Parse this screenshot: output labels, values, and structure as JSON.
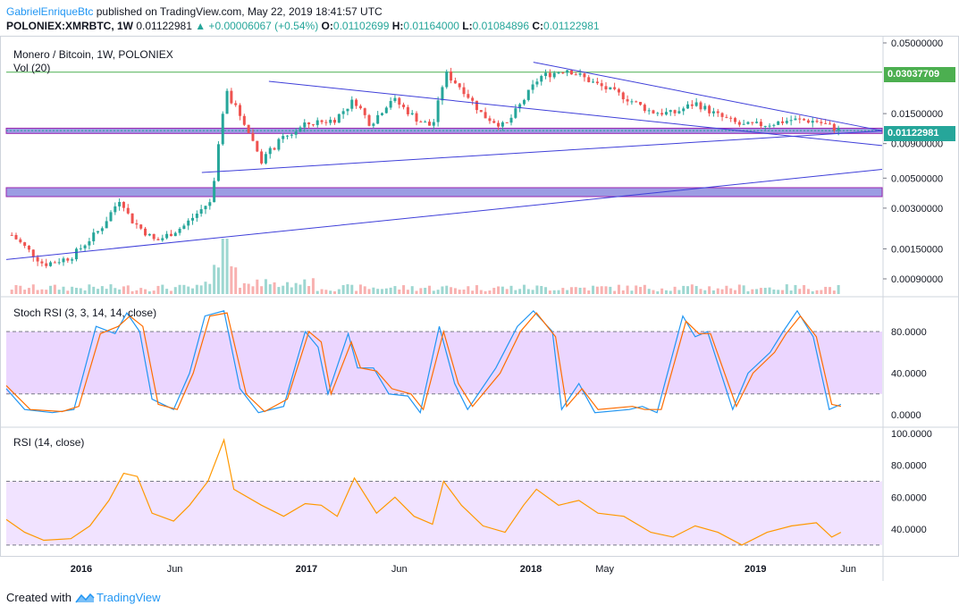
{
  "header": {
    "author": "GabrielEnriqueBtc",
    "published": "published on TradingView.com, May 22, 2019 18:41:57 UTC",
    "symbol": "POLONIEX:XMRBTC, 1W",
    "last": "0.01122981",
    "change": "▲ +0.00006067 (+0.54%)",
    "o_label": "O:",
    "o_value": "0.01102699",
    "h_label": "H:",
    "h_value": "0.01164000",
    "l_label": "L:",
    "l_value": "0.01084896",
    "c_label": "C:",
    "c_value": "0.01122981"
  },
  "panes": {
    "price_title": "Monero / Bitcoin, 1W, POLONIEX",
    "volume_title": "Vol (20)",
    "stoch_title": "Stoch RSI (3, 3, 14, 14, close)",
    "rsi_title": "RSI (14, close)"
  },
  "badges": {
    "resistance": "0.03037709",
    "last_price": "0.01122981"
  },
  "footer": {
    "created_with": "Created with",
    "brand": "TradingView"
  },
  "colors": {
    "up": "#26a69a",
    "down": "#ef5350",
    "trendline": "#3f3fd9",
    "zone": "#7b7bd9",
    "stoch_k": "#2196f3",
    "stoch_d": "#ff6d00",
    "rsi": "#ff9800",
    "band": "#e6ccff"
  },
  "chart_data": [
    {
      "type": "candlestick",
      "title": "Monero / Bitcoin, 1W, POLONIEX",
      "scale": "log",
      "y_ticks": [
        "0.05000000",
        "0.01500000",
        "0.00900000",
        "0.00500000",
        "0.00300000",
        "0.00150000",
        "0.00090000"
      ],
      "y_tick_values": [
        0.05,
        0.015,
        0.009,
        0.005,
        0.003,
        0.0015,
        0.0009
      ],
      "x_ticks": [
        "2016",
        "Jun",
        "2017",
        "Jun",
        "2018",
        "May",
        "2019",
        "Jun"
      ],
      "x_tick_dates": [
        "2016-01-01",
        "2016-06-01",
        "2017-01-01",
        "2017-06-01",
        "2018-01-01",
        "2018-05-01",
        "2019-01-01",
        "2019-06-01"
      ],
      "x_range": [
        "2015-09-01",
        "2019-07-26"
      ],
      "ylim": [
        0.00065,
        0.06
      ],
      "grid": false,
      "key_prices": [
        {
          "date": "2015-09-10",
          "close": 0.0019
        },
        {
          "date": "2015-11-01",
          "close": 0.00115
        },
        {
          "date": "2015-12-15",
          "close": 0.0013
        },
        {
          "date": "2016-02-01",
          "close": 0.0021
        },
        {
          "date": "2016-03-05",
          "close": 0.0036
        },
        {
          "date": "2016-03-20",
          "close": 0.0025
        },
        {
          "date": "2016-05-01",
          "close": 0.0017
        },
        {
          "date": "2016-06-15",
          "close": 0.0022
        },
        {
          "date": "2016-08-01",
          "close": 0.0035
        },
        {
          "date": "2016-08-22",
          "close": 0.022
        },
        {
          "date": "2016-09-20",
          "close": 0.0135
        },
        {
          "date": "2016-10-20",
          "close": 0.0068
        },
        {
          "date": "2016-11-20",
          "close": 0.0095
        },
        {
          "date": "2017-01-01",
          "close": 0.0125
        },
        {
          "date": "2017-02-15",
          "close": 0.0135
        },
        {
          "date": "2017-03-20",
          "close": 0.019
        },
        {
          "date": "2017-04-15",
          "close": 0.0125
        },
        {
          "date": "2017-05-20",
          "close": 0.0195
        },
        {
          "date": "2017-07-01",
          "close": 0.0135
        },
        {
          "date": "2017-07-25",
          "close": 0.012
        },
        {
          "date": "2017-08-15",
          "close": 0.03
        },
        {
          "date": "2017-09-15",
          "close": 0.022
        },
        {
          "date": "2017-10-15",
          "close": 0.0145
        },
        {
          "date": "2017-11-20",
          "close": 0.012
        },
        {
          "date": "2017-12-15",
          "close": 0.0175
        },
        {
          "date": "2018-01-15",
          "close": 0.028
        },
        {
          "date": "2018-03-01",
          "close": 0.032
        },
        {
          "date": "2018-04-15",
          "close": 0.025
        },
        {
          "date": "2018-06-01",
          "close": 0.02
        },
        {
          "date": "2018-07-15",
          "close": 0.0155
        },
        {
          "date": "2018-08-20",
          "close": 0.015
        },
        {
          "date": "2018-09-25",
          "close": 0.018
        },
        {
          "date": "2018-11-01",
          "close": 0.0145
        },
        {
          "date": "2018-12-10",
          "close": 0.0122
        },
        {
          "date": "2019-01-20",
          "close": 0.0125
        },
        {
          "date": "2019-03-01",
          "close": 0.0135
        },
        {
          "date": "2019-04-10",
          "close": 0.0132
        },
        {
          "date": "2019-05-20",
          "close": 0.01122981
        }
      ],
      "horizontal_levels": [
        0.03037709
      ],
      "zones": [
        [
          0.0107,
          0.0117
        ],
        [
          0.00365,
          0.00425
        ]
      ],
      "trendlines": [
        {
          "from": [
            "2015-09-01",
            0.00125
          ],
          "to": [
            "2019-07-26",
            0.0058
          ]
        },
        {
          "from": [
            "2016-07-15",
            0.0055
          ],
          "to": [
            "2019-07-26",
            0.0112
          ]
        },
        {
          "from": [
            "2016-11-01",
            0.026
          ],
          "to": [
            "2019-07-26",
            0.0087
          ]
        },
        {
          "from": [
            "2018-01-05",
            0.036
          ],
          "to": [
            "2019-07-26",
            0.0112
          ]
        }
      ]
    },
    {
      "type": "bar",
      "title": "Vol (20)",
      "description": "weekly volume bars colored by candle direction",
      "peak": {
        "date": "2016-08-22",
        "relative": 1.0
      }
    },
    {
      "type": "line",
      "title": "Stoch RSI (3, 3, 14, 14, close)",
      "y_ticks": [
        "80.0000",
        "40.0000",
        "0.0000"
      ],
      "y_tick_values": [
        80,
        40,
        0
      ],
      "ylim": [
        -5,
        105
      ],
      "band": [
        20,
        80
      ],
      "series": [
        {
          "name": "K",
          "points": [
            [
              "2015-09-01",
              25
            ],
            [
              "2015-10-01",
              5
            ],
            [
              "2015-11-15",
              2
            ],
            [
              "2015-12-20",
              5
            ],
            [
              "2016-01-25",
              85
            ],
            [
              "2016-02-25",
              78
            ],
            [
              "2016-03-15",
              98
            ],
            [
              "2016-04-05",
              80
            ],
            [
              "2016-04-25",
              15
            ],
            [
              "2016-05-30",
              5
            ],
            [
              "2016-06-25",
              40
            ],
            [
              "2016-07-20",
              95
            ],
            [
              "2016-08-20",
              100
            ],
            [
              "2016-09-15",
              25
            ],
            [
              "2016-10-15",
              2
            ],
            [
              "2016-11-25",
              8
            ],
            [
              "2016-12-30",
              80
            ],
            [
              "2017-01-20",
              65
            ],
            [
              "2017-02-05",
              20
            ],
            [
              "2017-03-10",
              78
            ],
            [
              "2017-03-25",
              45
            ],
            [
              "2017-04-20",
              45
            ],
            [
              "2017-05-15",
              20
            ],
            [
              "2017-06-15",
              18
            ],
            [
              "2017-07-05",
              2
            ],
            [
              "2017-08-05",
              85
            ],
            [
              "2017-08-30",
              30
            ],
            [
              "2017-09-20",
              5
            ],
            [
              "2017-11-05",
              45
            ],
            [
              "2017-12-10",
              85
            ],
            [
              "2018-01-05",
              100
            ],
            [
              "2018-02-05",
              80
            ],
            [
              "2018-02-20",
              5
            ],
            [
              "2018-03-20",
              30
            ],
            [
              "2018-04-15",
              2
            ],
            [
              "2018-06-10",
              5
            ],
            [
              "2018-07-01",
              8
            ],
            [
              "2018-07-25",
              2
            ],
            [
              "2018-09-05",
              95
            ],
            [
              "2018-09-25",
              75
            ],
            [
              "2018-10-15",
              80
            ],
            [
              "2018-11-25",
              5
            ],
            [
              "2018-12-20",
              40
            ],
            [
              "2019-01-25",
              60
            ],
            [
              "2019-02-15",
              80
            ],
            [
              "2019-03-10",
              100
            ],
            [
              "2019-04-05",
              75
            ],
            [
              "2019-05-01",
              5
            ],
            [
              "2019-05-20",
              10
            ]
          ]
        },
        {
          "name": "D",
          "points": [
            [
              "2015-09-01",
              28
            ],
            [
              "2015-10-10",
              5
            ],
            [
              "2015-12-01",
              3
            ],
            [
              "2015-12-28",
              8
            ],
            [
              "2016-02-01",
              78
            ],
            [
              "2016-03-01",
              85
            ],
            [
              "2016-03-20",
              95
            ],
            [
              "2016-04-10",
              85
            ],
            [
              "2016-05-05",
              10
            ],
            [
              "2016-06-05",
              5
            ],
            [
              "2016-07-01",
              40
            ],
            [
              "2016-07-28",
              95
            ],
            [
              "2016-08-25",
              98
            ],
            [
              "2016-09-25",
              20
            ],
            [
              "2016-10-25",
              3
            ],
            [
              "2016-12-01",
              15
            ],
            [
              "2017-01-05",
              80
            ],
            [
              "2017-01-25",
              70
            ],
            [
              "2017-02-10",
              20
            ],
            [
              "2017-03-15",
              70
            ],
            [
              "2017-03-30",
              45
            ],
            [
              "2017-04-25",
              42
            ],
            [
              "2017-05-20",
              25
            ],
            [
              "2017-06-20",
              20
            ],
            [
              "2017-07-10",
              5
            ],
            [
              "2017-08-12",
              80
            ],
            [
              "2017-09-05",
              30
            ],
            [
              "2017-09-28",
              8
            ],
            [
              "2017-11-12",
              40
            ],
            [
              "2017-12-15",
              80
            ],
            [
              "2018-01-10",
              98
            ],
            [
              "2018-02-10",
              75
            ],
            [
              "2018-02-28",
              8
            ],
            [
              "2018-03-25",
              25
            ],
            [
              "2018-04-20",
              5
            ],
            [
              "2018-06-15",
              8
            ],
            [
              "2018-07-05",
              5
            ],
            [
              "2018-08-01",
              5
            ],
            [
              "2018-09-10",
              90
            ],
            [
              "2018-10-01",
              78
            ],
            [
              "2018-10-20",
              78
            ],
            [
              "2018-12-01",
              8
            ],
            [
              "2018-12-28",
              40
            ],
            [
              "2019-02-01",
              60
            ],
            [
              "2019-02-20",
              78
            ],
            [
              "2019-03-15",
              95
            ],
            [
              "2019-04-10",
              75
            ],
            [
              "2019-05-05",
              10
            ],
            [
              "2019-05-20",
              8
            ]
          ]
        }
      ]
    },
    {
      "type": "line",
      "title": "RSI (14, close)",
      "y_ticks": [
        "100.0000",
        "80.0000",
        "60.0000",
        "40.0000"
      ],
      "y_tick_values": [
        100,
        80,
        60,
        40
      ],
      "ylim": [
        20,
        102
      ],
      "band": [
        30,
        70
      ],
      "series": [
        {
          "name": "RSI",
          "points": [
            [
              "2015-09-01",
              46
            ],
            [
              "2015-10-01",
              38
            ],
            [
              "2015-11-01",
              33
            ],
            [
              "2015-12-15",
              34
            ],
            [
              "2016-01-15",
              42
            ],
            [
              "2016-02-15",
              58
            ],
            [
              "2016-03-10",
              75
            ],
            [
              "2016-04-01",
              73
            ],
            [
              "2016-04-25",
              50
            ],
            [
              "2016-05-30",
              45
            ],
            [
              "2016-06-25",
              55
            ],
            [
              "2016-07-25",
              70
            ],
            [
              "2016-08-20",
              96
            ],
            [
              "2016-09-05",
              65
            ],
            [
              "2016-10-20",
              55
            ],
            [
              "2016-11-25",
              48
            ],
            [
              "2016-12-30",
              56
            ],
            [
              "2017-01-25",
              55
            ],
            [
              "2017-02-20",
              48
            ],
            [
              "2017-03-20",
              72
            ],
            [
              "2017-04-25",
              50
            ],
            [
              "2017-05-25",
              60
            ],
            [
              "2017-06-25",
              48
            ],
            [
              "2017-07-25",
              43
            ],
            [
              "2017-08-12",
              70
            ],
            [
              "2017-09-10",
              55
            ],
            [
              "2017-10-15",
              42
            ],
            [
              "2017-11-20",
              38
            ],
            [
              "2017-12-20",
              55
            ],
            [
              "2018-01-10",
              65
            ],
            [
              "2018-02-15",
              55
            ],
            [
              "2018-03-20",
              58
            ],
            [
              "2018-04-20",
              50
            ],
            [
              "2018-06-01",
              48
            ],
            [
              "2018-07-15",
              38
            ],
            [
              "2018-08-20",
              35
            ],
            [
              "2018-09-25",
              42
            ],
            [
              "2018-11-01",
              38
            ],
            [
              "2018-12-10",
              30
            ],
            [
              "2019-01-20",
              38
            ],
            [
              "2019-03-01",
              42
            ],
            [
              "2019-04-10",
              44
            ],
            [
              "2019-05-05",
              35
            ],
            [
              "2019-05-20",
              38
            ]
          ]
        }
      ]
    }
  ]
}
